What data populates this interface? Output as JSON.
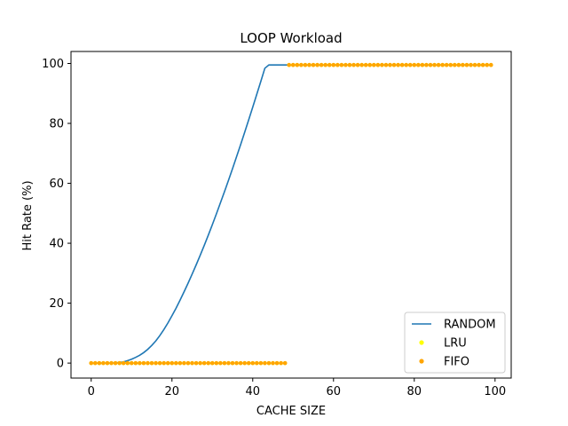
{
  "chart_data": {
    "type": "line",
    "title": "LOOP Workload",
    "xlabel": "CACHE SIZE",
    "ylabel": "Hit Rate (%)",
    "xlim": [
      -5,
      104
    ],
    "ylim": [
      -5,
      104
    ],
    "xticks": [
      0,
      20,
      40,
      60,
      80,
      100
    ],
    "yticks": [
      0,
      20,
      40,
      60,
      80,
      100
    ],
    "grid": false,
    "legend_position": "lower-right",
    "series": [
      {
        "name": "RANDOM",
        "kind": "line",
        "color": "#1f77b4",
        "x": [
          0,
          1,
          2,
          3,
          4,
          5,
          6,
          7,
          8,
          9,
          10,
          11,
          12,
          13,
          14,
          15,
          16,
          17,
          18,
          19,
          20,
          21,
          22,
          23,
          24,
          25,
          26,
          27,
          28,
          29,
          30,
          31,
          32,
          33,
          34,
          35,
          36,
          37,
          38,
          39,
          40,
          41,
          42,
          43,
          44,
          45,
          46,
          47,
          48,
          49,
          50,
          51,
          52,
          53,
          54,
          55,
          56,
          57,
          58,
          59,
          60,
          61,
          62,
          63,
          64,
          65,
          66,
          67,
          68,
          69,
          70,
          71,
          72,
          73,
          74,
          75,
          76,
          77,
          78,
          79,
          80,
          81,
          82,
          83,
          84,
          85,
          86,
          87,
          88,
          89,
          90,
          91,
          92,
          93,
          94,
          95,
          96,
          97,
          98,
          99
        ],
        "y": [
          0,
          0,
          0,
          0,
          0,
          0,
          0.1,
          0.2,
          0.4,
          0.8,
          1.3,
          1.9,
          2.6,
          3.5,
          4.6,
          5.9,
          7.4,
          9.2,
          11.2,
          13.4,
          15.8,
          18.3,
          21,
          23.8,
          26.7,
          29.7,
          32.8,
          36,
          39.3,
          42.7,
          46.2,
          49.8,
          53.5,
          57.2,
          61,
          64.9,
          68.9,
          72.9,
          77,
          81.2,
          85.4,
          89.7,
          94,
          98.4,
          99.5,
          99.5,
          99.5,
          99.5,
          99.5,
          99.5,
          99.5,
          99.5,
          99.5,
          99.5,
          99.5,
          99.5,
          99.5,
          99.5,
          99.5,
          99.5,
          99.5,
          99.5,
          99.5,
          99.5,
          99.5,
          99.5,
          99.5,
          99.5,
          99.5,
          99.5,
          99.5,
          99.5,
          99.5,
          99.5,
          99.5,
          99.5,
          99.5,
          99.5,
          99.5,
          99.5,
          99.5,
          99.5,
          99.5,
          99.5,
          99.5,
          99.5,
          99.5,
          99.5,
          99.5,
          99.5,
          99.5,
          99.5,
          99.5,
          99.5,
          99.5,
          99.5,
          99.5,
          99.5,
          99.5,
          99.5
        ]
      },
      {
        "name": "LRU",
        "kind": "scatter",
        "color": "#ffff00",
        "x": [
          0,
          1,
          2,
          3,
          4,
          5,
          6,
          7,
          8,
          9,
          10,
          11,
          12,
          13,
          14,
          15,
          16,
          17,
          18,
          19,
          20,
          21,
          22,
          23,
          24,
          25,
          26,
          27,
          28,
          29,
          30,
          31,
          32,
          33,
          34,
          35,
          36,
          37,
          38,
          39,
          40,
          41,
          42,
          43,
          44,
          45,
          46,
          47,
          48,
          49,
          50,
          51,
          52,
          53,
          54,
          55,
          56,
          57,
          58,
          59,
          60,
          61,
          62,
          63,
          64,
          65,
          66,
          67,
          68,
          69,
          70,
          71,
          72,
          73,
          74,
          75,
          76,
          77,
          78,
          79,
          80,
          81,
          82,
          83,
          84,
          85,
          86,
          87,
          88,
          89,
          90,
          91,
          92,
          93,
          94,
          95,
          96,
          97,
          98,
          99
        ],
        "y": [
          0,
          0,
          0,
          0,
          0,
          0,
          0,
          0,
          0,
          0,
          0,
          0,
          0,
          0,
          0,
          0,
          0,
          0,
          0,
          0,
          0,
          0,
          0,
          0,
          0,
          0,
          0,
          0,
          0,
          0,
          0,
          0,
          0,
          0,
          0,
          0,
          0,
          0,
          0,
          0,
          0,
          0,
          0,
          0,
          0,
          0,
          0,
          0,
          0,
          99.5,
          99.5,
          99.5,
          99.5,
          99.5,
          99.5,
          99.5,
          99.5,
          99.5,
          99.5,
          99.5,
          99.5,
          99.5,
          99.5,
          99.5,
          99.5,
          99.5,
          99.5,
          99.5,
          99.5,
          99.5,
          99.5,
          99.5,
          99.5,
          99.5,
          99.5,
          99.5,
          99.5,
          99.5,
          99.5,
          99.5,
          99.5,
          99.5,
          99.5,
          99.5,
          99.5,
          99.5,
          99.5,
          99.5,
          99.5,
          99.5,
          99.5,
          99.5,
          99.5,
          99.5,
          99.5,
          99.5,
          99.5,
          99.5,
          99.5,
          99.5
        ]
      },
      {
        "name": "FIFO",
        "kind": "scatter",
        "color": "#ffa500",
        "x": [
          0,
          1,
          2,
          3,
          4,
          5,
          6,
          7,
          8,
          9,
          10,
          11,
          12,
          13,
          14,
          15,
          16,
          17,
          18,
          19,
          20,
          21,
          22,
          23,
          24,
          25,
          26,
          27,
          28,
          29,
          30,
          31,
          32,
          33,
          34,
          35,
          36,
          37,
          38,
          39,
          40,
          41,
          42,
          43,
          44,
          45,
          46,
          47,
          48,
          49,
          50,
          51,
          52,
          53,
          54,
          55,
          56,
          57,
          58,
          59,
          60,
          61,
          62,
          63,
          64,
          65,
          66,
          67,
          68,
          69,
          70,
          71,
          72,
          73,
          74,
          75,
          76,
          77,
          78,
          79,
          80,
          81,
          82,
          83,
          84,
          85,
          86,
          87,
          88,
          89,
          90,
          91,
          92,
          93,
          94,
          95,
          96,
          97,
          98,
          99
        ],
        "y": [
          0,
          0,
          0,
          0,
          0,
          0,
          0,
          0,
          0,
          0,
          0,
          0,
          0,
          0,
          0,
          0,
          0,
          0,
          0,
          0,
          0,
          0,
          0,
          0,
          0,
          0,
          0,
          0,
          0,
          0,
          0,
          0,
          0,
          0,
          0,
          0,
          0,
          0,
          0,
          0,
          0,
          0,
          0,
          0,
          0,
          0,
          0,
          0,
          0,
          99.5,
          99.5,
          99.5,
          99.5,
          99.5,
          99.5,
          99.5,
          99.5,
          99.5,
          99.5,
          99.5,
          99.5,
          99.5,
          99.5,
          99.5,
          99.5,
          99.5,
          99.5,
          99.5,
          99.5,
          99.5,
          99.5,
          99.5,
          99.5,
          99.5,
          99.5,
          99.5,
          99.5,
          99.5,
          99.5,
          99.5,
          99.5,
          99.5,
          99.5,
          99.5,
          99.5,
          99.5,
          99.5,
          99.5,
          99.5,
          99.5,
          99.5,
          99.5,
          99.5,
          99.5,
          99.5,
          99.5,
          99.5,
          99.5,
          99.5,
          99.5
        ]
      }
    ]
  }
}
